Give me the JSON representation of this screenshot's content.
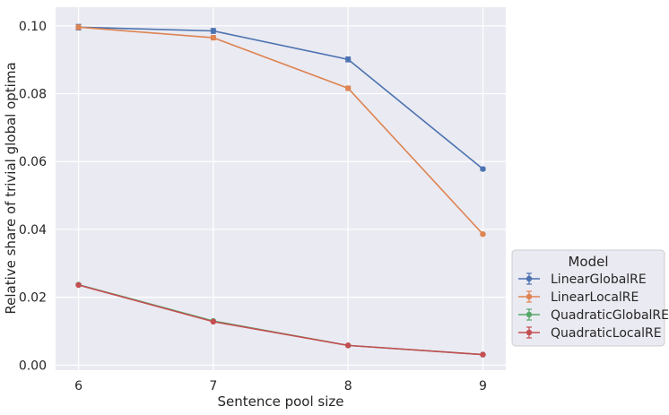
{
  "chart_data": {
    "type": "line",
    "xlabel": "Sentence pool size",
    "ylabel": "Relative share of trivial global optima",
    "x": [
      6,
      7,
      8,
      9
    ],
    "xlim": [
      5.83,
      9.17
    ],
    "ylim": [
      -0.0015,
      0.1055
    ],
    "yticks": [
      "0.00",
      "0.02",
      "0.04",
      "0.06",
      "0.08",
      "0.10"
    ],
    "ytick_values": [
      0,
      0.02,
      0.04,
      0.06,
      0.08,
      0.1
    ],
    "grid": true,
    "legend": {
      "title": "Model",
      "placement": "lower-right outside plot"
    },
    "series": [
      {
        "name": "LinearGlobalRE",
        "color": "#4c72b0",
        "values": [
          0.0996,
          0.0985,
          0.0901,
          0.0578
        ],
        "errors": [
          0.0008,
          0.0007,
          0.0007,
          0.0004
        ]
      },
      {
        "name": "LinearLocalRE",
        "color": "#dd8452",
        "values": [
          0.0996,
          0.0965,
          0.0816,
          0.0386
        ],
        "errors": [
          0.0006,
          0.0006,
          0.0006,
          0.0003
        ]
      },
      {
        "name": "QuadraticGlobalRE",
        "color": "#55a868",
        "values": [
          0.0237,
          0.013,
          0.0058,
          0.0031
        ],
        "errors": [
          0.0003,
          0.0002,
          0.0001,
          0.0001
        ]
      },
      {
        "name": "QuadraticLocalRE",
        "color": "#c44e52",
        "values": [
          0.0236,
          0.0128,
          0.0058,
          0.0031
        ],
        "errors": [
          0.0003,
          0.0002,
          0.0001,
          0.0001
        ]
      }
    ]
  }
}
